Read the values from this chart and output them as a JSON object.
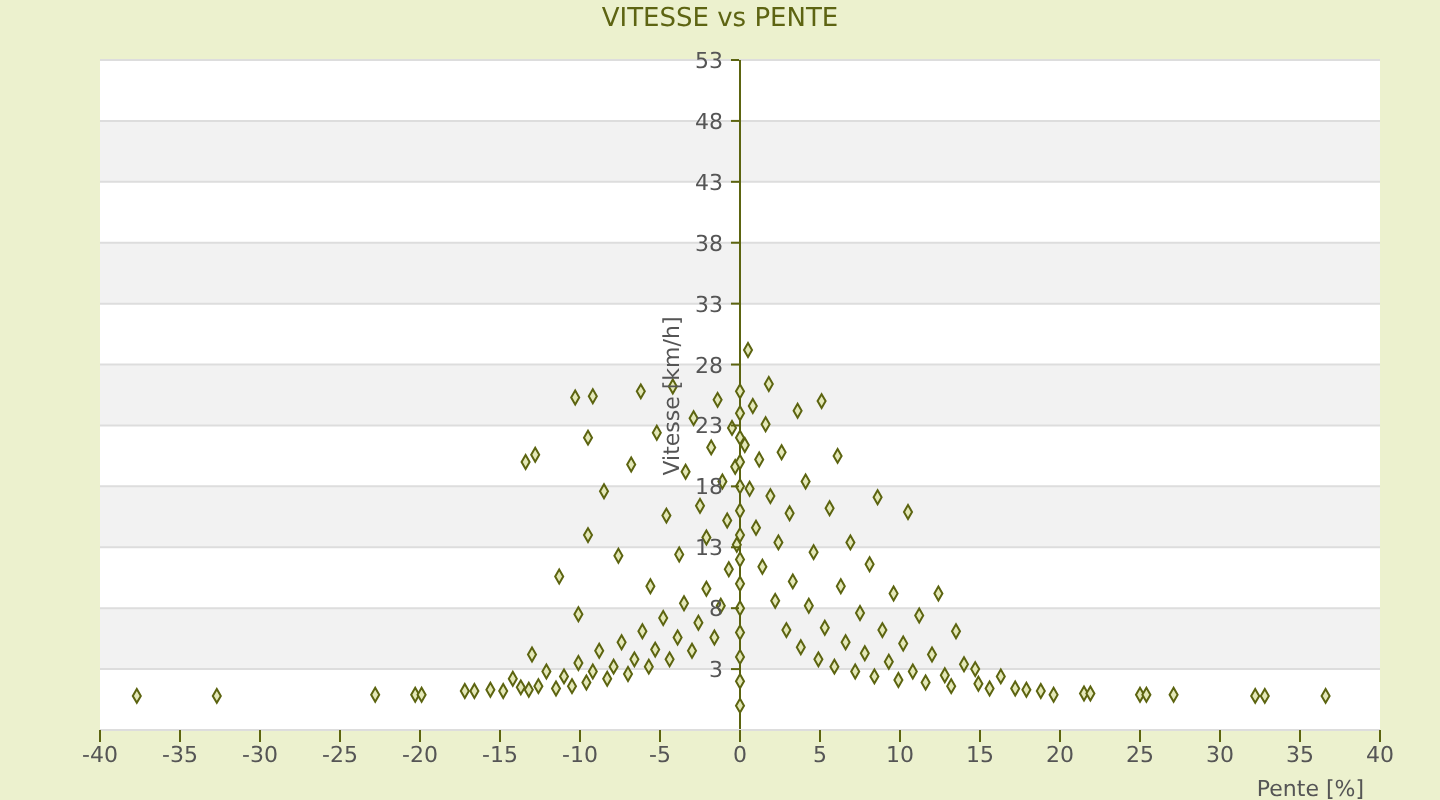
{
  "chart_data": {
    "type": "scatter",
    "title": "VITESSE vs PENTE",
    "xlabel": "Pente [%]",
    "ylabel": "Vitesse [km/h]",
    "xlim": [
      -40,
      40
    ],
    "xticks": [
      -40,
      -35,
      -30,
      -25,
      -20,
      -15,
      -10,
      -5,
      0,
      5,
      10,
      15,
      20,
      25,
      30,
      35,
      40
    ],
    "ylim": [
      -2,
      53
    ],
    "yticks": [
      3,
      8,
      13,
      18,
      23,
      28,
      33,
      38,
      43,
      48,
      53
    ],
    "grid": "y",
    "marker": "diamond",
    "legend": false,
    "series": [
      {
        "color": "#5c6410",
        "x": [
          -37.7,
          -32.7,
          -22.8,
          -20.3,
          -19.9,
          -17.2,
          -16.6,
          -15.6,
          -14.8,
          -14.2,
          -13.7,
          -13.2,
          -12.6,
          -12.1,
          -11.5,
          -11,
          -10.5,
          -10.1,
          -9.6,
          -9.2,
          -8.8,
          -8.3,
          -7.9,
          -7.4,
          -7,
          -6.6,
          -6.1,
          -5.7,
          -5.3,
          -4.8,
          -4.4,
          -3.9,
          -3.5,
          -3,
          -2.6,
          -2.1,
          -1.6,
          -1.2,
          -0.7,
          -13.4,
          -12.8,
          -10.3,
          -9.2,
          -9.5,
          -9.5,
          -10.1,
          -13,
          -11.3,
          -8.5,
          -7.6,
          -6.8,
          -6.2,
          -5.6,
          -5.2,
          -4.6,
          -4.2,
          -3.8,
          -3.4,
          -2.9,
          -2.5,
          -2.1,
          -1.8,
          -1.4,
          -1.1,
          -0.8,
          -0.5,
          -0.3,
          -0.2,
          0,
          0,
          0,
          0,
          0,
          0,
          0,
          0,
          0,
          0,
          0,
          0,
          0,
          0,
          0.3,
          0.5,
          0.6,
          0.8,
          1,
          1.2,
          1.4,
          1.6,
          1.8,
          1.9,
          2.2,
          2.4,
          2.6,
          2.9,
          3.1,
          3.3,
          3.6,
          3.8,
          4.1,
          4.3,
          4.6,
          4.9,
          5.1,
          5.3,
          5.6,
          5.9,
          6.1,
          6.3,
          6.6,
          6.9,
          7.2,
          7.5,
          7.8,
          8.1,
          8.4,
          8.6,
          8.9,
          9.3,
          9.6,
          9.9,
          10.2,
          10.5,
          10.8,
          11.2,
          11.6,
          12,
          12.4,
          12.8,
          13.5,
          13.2,
          14,
          14.7,
          14.9,
          15.6,
          16.3,
          17.2,
          17.9,
          18.8,
          19.6,
          21.5,
          21.9,
          25,
          25.4,
          27.1,
          32.2,
          32.8,
          36.6
        ],
        "values": [
          0.8,
          0.8,
          0.9,
          0.9,
          0.9,
          1.2,
          1.2,
          1.3,
          1.2,
          2.2,
          1.5,
          1.3,
          1.6,
          2.8,
          1.4,
          2.4,
          1.6,
          3.5,
          1.9,
          2.8,
          4.5,
          2.2,
          3.2,
          5.2,
          2.6,
          3.8,
          6.1,
          3.2,
          4.6,
          7.2,
          3.8,
          5.6,
          8.4,
          4.5,
          6.8,
          9.6,
          5.6,
          8.2,
          11.2,
          20,
          20.6,
          25.3,
          25.4,
          22,
          14,
          7.5,
          4.2,
          10.6,
          17.6,
          12.3,
          19.8,
          25.8,
          9.8,
          22.4,
          15.6,
          26.2,
          12.4,
          19.2,
          23.6,
          16.4,
          13.8,
          21.2,
          25.1,
          18.4,
          15.2,
          22.8,
          19.6,
          13.2,
          0,
          2,
          4,
          6,
          8,
          10,
          12,
          14,
          16,
          18,
          20,
          22,
          24,
          25.8,
          21.4,
          29.2,
          17.8,
          24.6,
          14.6,
          20.2,
          11.4,
          23.1,
          26.4,
          17.2,
          8.6,
          13.4,
          20.8,
          6.2,
          15.8,
          10.2,
          24.2,
          4.8,
          18.4,
          8.2,
          12.6,
          3.8,
          25,
          6.4,
          16.2,
          3.2,
          20.5,
          9.8,
          5.2,
          13.4,
          2.8,
          7.6,
          4.3,
          11.6,
          2.4,
          17.1,
          6.2,
          3.6,
          9.2,
          2.1,
          5.1,
          15.9,
          2.8,
          7.4,
          1.9,
          4.2,
          9.2,
          2.5,
          6.1,
          1.6,
          3.4,
          3,
          1.8,
          1.4,
          2.4,
          1.4,
          1.3,
          1.2,
          0.9,
          1,
          1,
          0.9,
          0.9,
          0.9,
          0.8,
          0.8,
          0.8
        ]
      }
    ]
  }
}
